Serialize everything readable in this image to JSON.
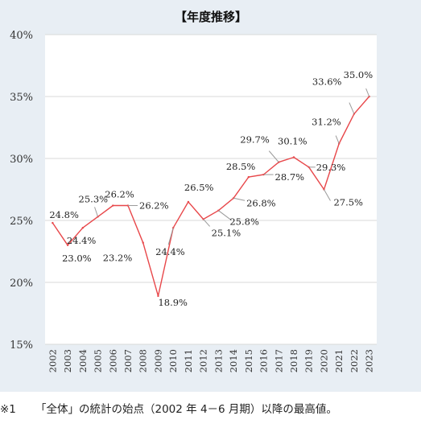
{
  "chart_data": {
    "type": "line",
    "title": "【年度推移】",
    "x": [
      "2002",
      "2003",
      "2004",
      "2005",
      "2006",
      "2007",
      "2008",
      "2009",
      "2010",
      "2011",
      "2012",
      "2013",
      "2014",
      "2015",
      "2016",
      "2017",
      "2018",
      "2019",
      "2020",
      "2021",
      "2022",
      "2023"
    ],
    "series": [
      {
        "values": [
          24.8,
          23.0,
          24.4,
          25.3,
          26.2,
          26.2,
          23.2,
          18.9,
          24.4,
          26.5,
          25.1,
          25.8,
          26.8,
          28.5,
          28.7,
          29.7,
          30.1,
          29.3,
          27.5,
          31.2,
          33.6,
          35.0
        ],
        "labels": [
          "24.8%",
          "23.0%",
          "24.4%",
          "25.3%",
          "26.2%",
          "26.2%",
          "23.2%",
          "18.9%",
          "24.4%",
          "26.5%",
          "25.1%",
          "25.8%",
          "26.8%",
          "28.5%",
          "28.7%",
          "29.7%",
          "30.1%",
          "29.3%",
          "27.5%",
          "31.2%",
          "33.6%",
          "35.0%"
        ],
        "color": "#e8474a"
      }
    ],
    "ylim": [
      15,
      40
    ],
    "yticks": [
      15,
      20,
      25,
      30,
      35,
      40
    ],
    "ytick_labels": [
      "15%",
      "20%",
      "25%",
      "30%",
      "35%",
      "40%"
    ],
    "grid": true,
    "colors": {
      "panel_bg": "#e8eef4",
      "plot_bg": "#ffffff",
      "grid": "#d9d9d9",
      "line": "#e8474a",
      "leader": "#9a9a9a"
    }
  },
  "footnote": {
    "mark": "※1",
    "text": "「全体」の統計の始点（2002 年 4－6 月期）以降の最高値。"
  }
}
